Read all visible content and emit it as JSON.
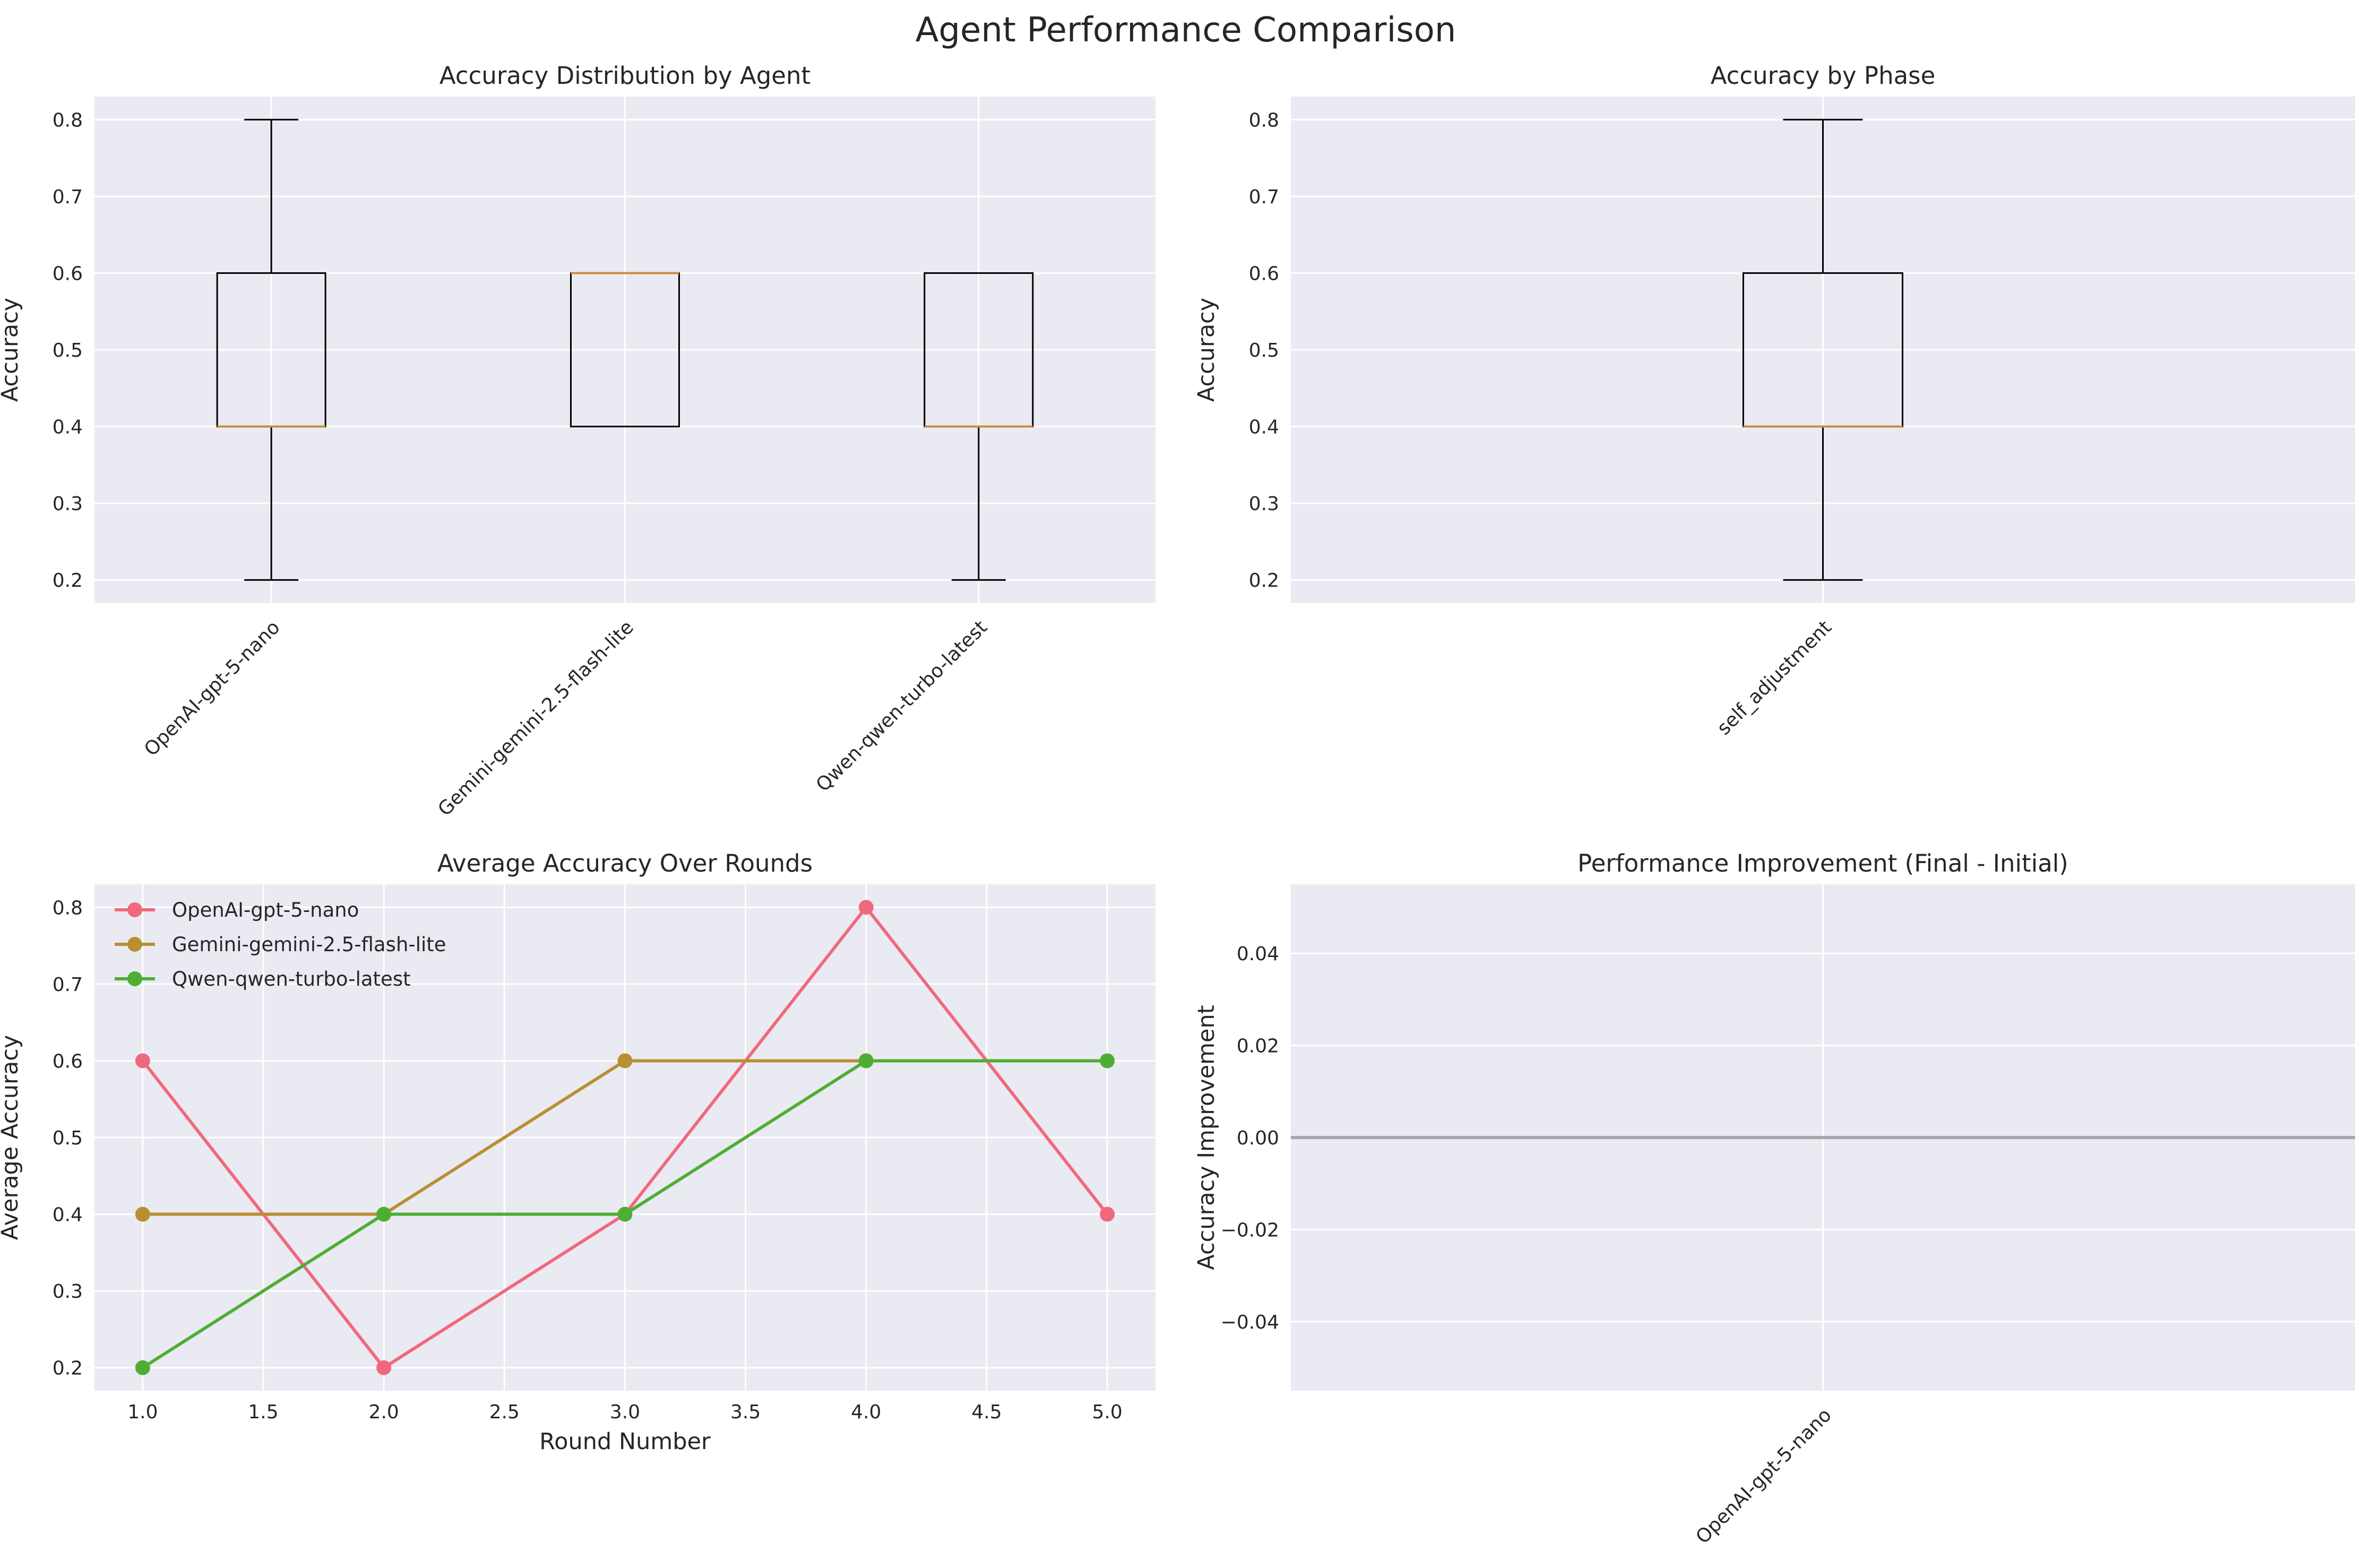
{
  "figure": {
    "title": "Agent Performance Comparison"
  },
  "chart_data": [
    {
      "type": "box",
      "title": "Accuracy Distribution by Agent",
      "xlabel": "",
      "ylabel": "Accuracy",
      "ylim": [
        0.17,
        0.83
      ],
      "yticks": [
        "0.2",
        "0.3",
        "0.4",
        "0.5",
        "0.6",
        "0.7",
        "0.8"
      ],
      "categories": [
        "OpenAI-gpt-5-nano",
        "Gemini-gemini-2.5-flash-lite",
        "Qwen-qwen-turbo-latest"
      ],
      "boxes": [
        {
          "whislo": 0.2,
          "q1": 0.4,
          "med": 0.4,
          "q3": 0.6,
          "whishi": 0.8
        },
        {
          "whislo": 0.4,
          "q1": 0.4,
          "med": 0.6,
          "q3": 0.6,
          "whishi": 0.6
        },
        {
          "whislo": 0.2,
          "q1": 0.4,
          "med": 0.4,
          "q3": 0.6,
          "whishi": 0.6
        }
      ],
      "grid": true
    },
    {
      "type": "box",
      "title": "Accuracy by Phase",
      "xlabel": "",
      "ylabel": "Accuracy",
      "ylim": [
        0.17,
        0.83
      ],
      "yticks": [
        "0.2",
        "0.3",
        "0.4",
        "0.5",
        "0.6",
        "0.7",
        "0.8"
      ],
      "categories": [
        "self_adjustment"
      ],
      "boxes": [
        {
          "whislo": 0.2,
          "q1": 0.4,
          "med": 0.4,
          "q3": 0.6,
          "whishi": 0.8
        }
      ],
      "grid": true
    },
    {
      "type": "line",
      "title": "Average Accuracy Over Rounds",
      "xlabel": "Round Number",
      "ylabel": "Average Accuracy",
      "xlim": [
        0.8,
        5.2
      ],
      "ylim": [
        0.17,
        0.83
      ],
      "xticks": [
        "1.0",
        "1.5",
        "2.0",
        "2.5",
        "3.0",
        "3.5",
        "4.0",
        "4.5",
        "5.0"
      ],
      "yticks": [
        "0.2",
        "0.3",
        "0.4",
        "0.5",
        "0.6",
        "0.7",
        "0.8"
      ],
      "x": [
        1,
        2,
        3,
        4,
        5
      ],
      "series": [
        {
          "name": "OpenAI-gpt-5-nano",
          "values": [
            0.6,
            0.2,
            0.4,
            0.8,
            0.4
          ],
          "color": "#f1687e"
        },
        {
          "name": "Gemini-gemini-2.5-flash-lite",
          "values": [
            0.4,
            0.4,
            0.6,
            0.6,
            null
          ],
          "color": "#b98f34"
        },
        {
          "name": "Qwen-qwen-turbo-latest",
          "values": [
            0.2,
            0.4,
            0.4,
            0.6,
            0.6
          ],
          "color": "#4eae34"
        }
      ],
      "legend": "top-left",
      "grid": true
    },
    {
      "type": "bar",
      "title": "Performance Improvement (Final - Initial)",
      "xlabel": "",
      "ylabel": "Accuracy Improvement",
      "ylim": [
        -0.055,
        0.055
      ],
      "yticks": [
        "0.04",
        "0.02",
        "0.00",
        "−0.02",
        "−0.04"
      ],
      "categories": [
        "OpenAI-gpt-5-nano"
      ],
      "values": [
        0.0
      ],
      "grid": true
    }
  ],
  "colors": {
    "axes_bg": "#eaeaf2",
    "grid": "#ffffff",
    "box_edge": "#000000",
    "median": "#c68d3f",
    "zero_line": "#a6a6aa"
  }
}
